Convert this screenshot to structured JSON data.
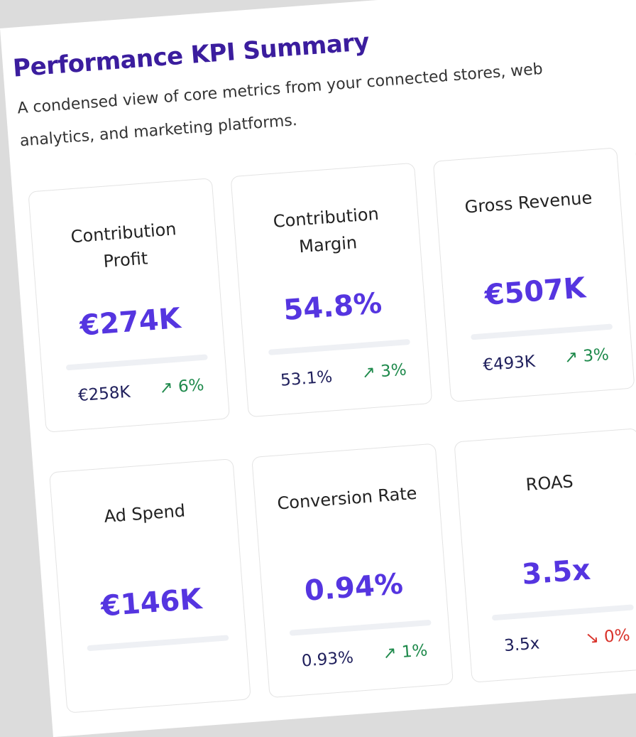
{
  "header": {
    "title": "Performance KPI Summary",
    "subtitle": "A condensed view of core metrics from your connected stores, web analytics, and marketing platforms."
  },
  "cards": [
    {
      "label": "Contribution Profit",
      "value": "€274K",
      "previous": "€258K",
      "change": "↗ 6%",
      "change_color": "#1f8a4c"
    },
    {
      "label": "Contribution Margin",
      "value": "54.8%",
      "previous": "53.1%",
      "change": "↗ 3%",
      "change_color": "#1f8a4c"
    },
    {
      "label": "Gross Revenue",
      "value": "€507K",
      "previous": "€493K",
      "change": "↗ 3%",
      "change_color": "#1f8a4c"
    },
    {
      "label": "Ad Spend",
      "value": "€146K"
    },
    {
      "label": "Conversion Rate",
      "value": "0.94%",
      "previous": "0.93%",
      "change": "↗ 1%",
      "change_color": "#1f8a4c"
    },
    {
      "label": "ROAS",
      "value": "3.5x",
      "previous": "3.5x",
      "change": "↘ 0%",
      "change_color": "#d9332b"
    }
  ]
}
